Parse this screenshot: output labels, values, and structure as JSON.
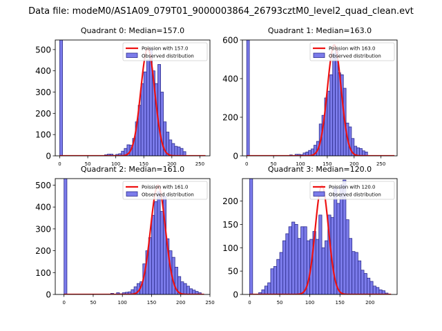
{
  "figure": {
    "suptitle": "Data file: modeM0/AS1A09_079T01_9000003864_26793cztM0_level2_quad_clean.evt"
  },
  "colors": {
    "bar_fill": "#7b7bea",
    "bar_edge": "#2b2b8c",
    "curve": "#ee1111"
  },
  "chart_data": [
    {
      "type": "bar",
      "title": "Quadrant 0: Median=157.0",
      "xlim": [
        -8,
        268
      ],
      "ylim": [
        0,
        545
      ],
      "xticks": [
        0,
        50,
        100,
        150,
        200,
        250
      ],
      "yticks": [
        0,
        100,
        200,
        300,
        400,
        500
      ],
      "bin_width": 5,
      "legend": {
        "placement": "top-right",
        "entries": [
          "Poission with 157.0",
          "Observed distribution"
        ]
      },
      "bars": [
        [
          0,
          545
        ],
        [
          80,
          5
        ],
        [
          85,
          8
        ],
        [
          90,
          8
        ],
        [
          95,
          3
        ],
        [
          100,
          7
        ],
        [
          105,
          10
        ],
        [
          110,
          22
        ],
        [
          115,
          35
        ],
        [
          120,
          52
        ],
        [
          125,
          50
        ],
        [
          130,
          82
        ],
        [
          135,
          160
        ],
        [
          140,
          238
        ],
        [
          145,
          340
        ],
        [
          150,
          395
        ],
        [
          155,
          452
        ],
        [
          160,
          505
        ],
        [
          165,
          400
        ],
        [
          170,
          340
        ],
        [
          175,
          430
        ],
        [
          180,
          300
        ],
        [
          185,
          160
        ],
        [
          190,
          112
        ],
        [
          195,
          75
        ],
        [
          200,
          58
        ],
        [
          205,
          45
        ],
        [
          210,
          42
        ],
        [
          215,
          35
        ],
        [
          220,
          20
        ]
      ],
      "poisson": {
        "label": "Poission with 157.0",
        "mean": 157.0,
        "peak": 505,
        "sigma": 12.5,
        "range": [
          0,
          260
        ]
      }
    },
    {
      "type": "bar",
      "title": "Quadrant 1: Median=163.0",
      "xlim": [
        -8,
        280
      ],
      "ylim": [
        0,
        600
      ],
      "xticks": [
        0,
        50,
        100,
        150,
        200,
        250
      ],
      "yticks": [
        0,
        200,
        400,
        600
      ],
      "bin_width": 5,
      "legend": {
        "placement": "top-right",
        "entries": [
          "Poission with 163.0",
          "Observed distribution"
        ]
      },
      "bars": [
        [
          0,
          600
        ],
        [
          80,
          5
        ],
        [
          90,
          8
        ],
        [
          95,
          8
        ],
        [
          100,
          6
        ],
        [
          105,
          15
        ],
        [
          110,
          20
        ],
        [
          115,
          28
        ],
        [
          120,
          36
        ],
        [
          125,
          55
        ],
        [
          130,
          75
        ],
        [
          135,
          165
        ],
        [
          140,
          210
        ],
        [
          145,
          300
        ],
        [
          150,
          335
        ],
        [
          155,
          420
        ],
        [
          160,
          530
        ],
        [
          165,
          545
        ],
        [
          170,
          430
        ],
        [
          175,
          420
        ],
        [
          180,
          350
        ],
        [
          185,
          170
        ],
        [
          190,
          150
        ],
        [
          195,
          90
        ],
        [
          200,
          50
        ],
        [
          205,
          42
        ],
        [
          210,
          38
        ],
        [
          215,
          26
        ],
        [
          220,
          20
        ]
      ],
      "poisson": {
        "label": "Poission with 163.0",
        "mean": 163.0,
        "peak": 575,
        "sigma": 12.8,
        "range": [
          0,
          275
        ]
      }
    },
    {
      "type": "bar",
      "title": "Quadrant 2: Median=161.0",
      "xlim": [
        -15,
        250
      ],
      "ylim": [
        0,
        530
      ],
      "xticks": [
        0,
        50,
        100,
        150,
        200,
        250
      ],
      "yticks": [
        0,
        100,
        200,
        300,
        400,
        500
      ],
      "bin_width": 5,
      "legend": {
        "placement": "top-right",
        "entries": [
          "Poission with 161.0",
          "Observed distribution"
        ]
      },
      "bars": [
        [
          0,
          530
        ],
        [
          80,
          5
        ],
        [
          90,
          8
        ],
        [
          95,
          3
        ],
        [
          100,
          8
        ],
        [
          105,
          10
        ],
        [
          110,
          12
        ],
        [
          115,
          22
        ],
        [
          120,
          35
        ],
        [
          125,
          50
        ],
        [
          130,
          58
        ],
        [
          135,
          140
        ],
        [
          140,
          200
        ],
        [
          145,
          260
        ],
        [
          150,
          362
        ],
        [
          155,
          425
        ],
        [
          160,
          470
        ],
        [
          165,
          380
        ],
        [
          170,
          450
        ],
        [
          175,
          255
        ],
        [
          180,
          200
        ],
        [
          185,
          170
        ],
        [
          190,
          125
        ],
        [
          195,
          82
        ],
        [
          200,
          58
        ],
        [
          205,
          50
        ],
        [
          210,
          38
        ],
        [
          215,
          26
        ],
        [
          220,
          20
        ],
        [
          225,
          14
        ],
        [
          230,
          8
        ]
      ],
      "poisson": {
        "label": "Poission with 161.0",
        "mean": 161.0,
        "peak": 500,
        "sigma": 12.7,
        "range": [
          0,
          240
        ]
      }
    },
    {
      "type": "bar",
      "title": "Quadrant 3: Median=120.0",
      "xlim": [
        -12,
        245
      ],
      "ylim": [
        0,
        248
      ],
      "xticks": [
        0,
        50,
        100,
        150,
        200
      ],
      "yticks": [
        0,
        50,
        100,
        150,
        200
      ],
      "bin_width": 5,
      "legend": {
        "placement": "top-right",
        "entries": [
          "Poission with 120.0",
          "Observed distribution"
        ]
      },
      "bars": [
        [
          0,
          248
        ],
        [
          15,
          4
        ],
        [
          20,
          10
        ],
        [
          25,
          18
        ],
        [
          30,
          25
        ],
        [
          35,
          55
        ],
        [
          40,
          60
        ],
        [
          45,
          75
        ],
        [
          50,
          90
        ],
        [
          55,
          115
        ],
        [
          60,
          130
        ],
        [
          65,
          145
        ],
        [
          70,
          155
        ],
        [
          75,
          150
        ],
        [
          80,
          120
        ],
        [
          85,
          145
        ],
        [
          90,
          145
        ],
        [
          95,
          115
        ],
        [
          100,
          118
        ],
        [
          105,
          135
        ],
        [
          110,
          118
        ],
        [
          115,
          170
        ],
        [
          120,
          100
        ],
        [
          125,
          115
        ],
        [
          130,
          170
        ],
        [
          135,
          165
        ],
        [
          140,
          230
        ],
        [
          145,
          195
        ],
        [
          150,
          235
        ],
        [
          155,
          245
        ],
        [
          160,
          160
        ],
        [
          165,
          120
        ],
        [
          170,
          92
        ],
        [
          175,
          90
        ],
        [
          180,
          72
        ],
        [
          185,
          52
        ],
        [
          190,
          45
        ],
        [
          195,
          35
        ],
        [
          200,
          28
        ],
        [
          205,
          18
        ],
        [
          210,
          15
        ],
        [
          215,
          10
        ],
        [
          220,
          8
        ],
        [
          225,
          3
        ]
      ],
      "poisson": {
        "label": "Poission with 120.0",
        "mean": 120.0,
        "peak": 233,
        "sigma": 11.0,
        "range": [
          0,
          235
        ]
      }
    }
  ]
}
